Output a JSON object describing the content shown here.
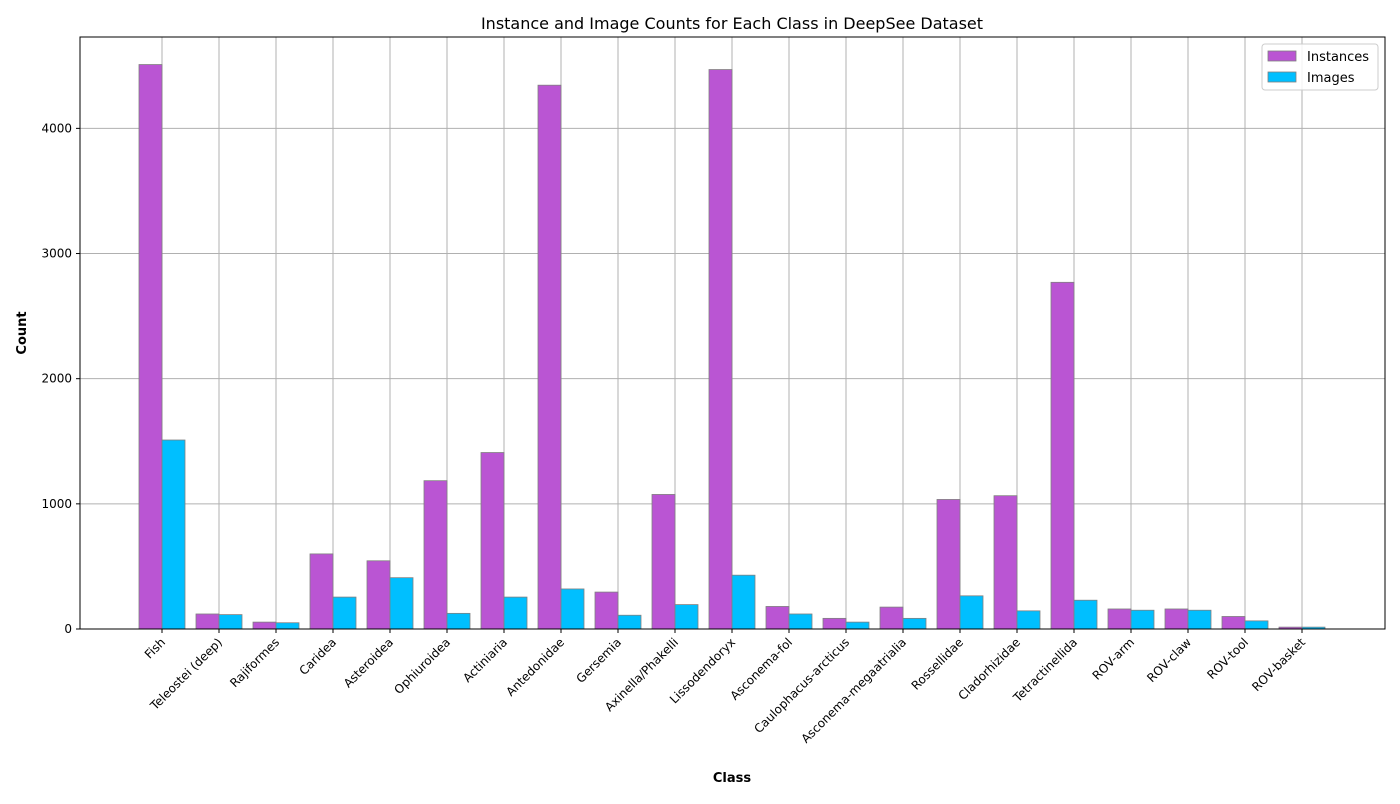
{
  "chart_data": {
    "type": "bar",
    "title": "Instance and Image Counts for Each Class in DeepSee Dataset",
    "xlabel": "Class",
    "ylabel": "Count",
    "ylim": [
      0,
      4730
    ],
    "yticks": [
      0,
      1000,
      2000,
      3000,
      4000
    ],
    "grid": true,
    "legend_position": "top-right",
    "categories": [
      "Fish",
      "Teleostei (deep)",
      "Rajiformes",
      "Caridea",
      "Asteroidea",
      "Ophiuroidea",
      "Actiniaria",
      "Antedonidae",
      "Gersemia",
      "Axinella/Phakelli",
      "Lissodendoryx",
      "Asconema-fol",
      "Caulophacus-arcticus",
      "Asconema-megaatrialia",
      "Rossellidae",
      "Cladorhizidae",
      "Tetractinellida",
      "ROV-arm",
      "ROV-claw",
      "ROV-tool",
      "ROV-basket"
    ],
    "series": [
      {
        "name": "Instances",
        "color": "#ba55d3",
        "values": [
          4510,
          120,
          55,
          600,
          545,
          1185,
          1410,
          4345,
          295,
          1075,
          4470,
          180,
          85,
          175,
          1035,
          1065,
          2770,
          160,
          160,
          100,
          15
        ]
      },
      {
        "name": "Images",
        "color": "#00bfff",
        "values": [
          1510,
          115,
          50,
          255,
          410,
          125,
          255,
          320,
          110,
          195,
          430,
          120,
          55,
          85,
          265,
          145,
          230,
          150,
          150,
          65,
          15
        ]
      }
    ]
  }
}
